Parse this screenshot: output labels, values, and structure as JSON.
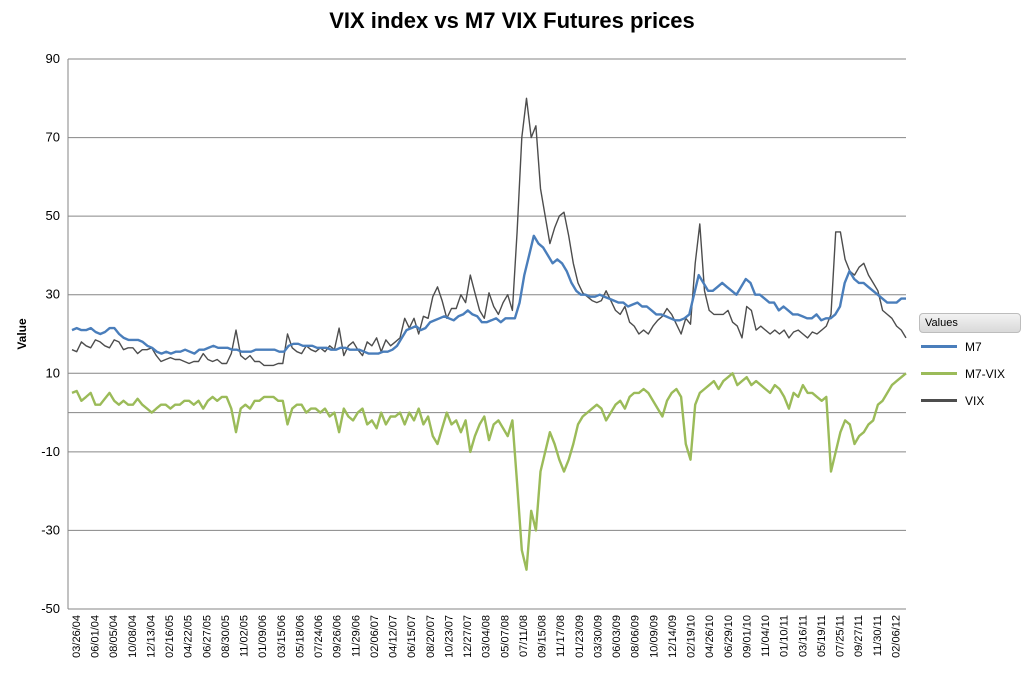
{
  "chart_data": {
    "type": "line",
    "title": "VIX index vs M7 VIX Futures prices",
    "xlabel": "",
    "ylabel": "Value",
    "ylim": [
      -50,
      90
    ],
    "yticks": [
      -50,
      -30,
      -10,
      10,
      30,
      50,
      70,
      90
    ],
    "x_tick_labels": [
      "03/26/04",
      "06/01/04",
      "08/05/04",
      "10/08/04",
      "12/13/04",
      "02/16/05",
      "04/22/05",
      "06/27/05",
      "08/30/05",
      "11/02/05",
      "01/09/06",
      "03/15/06",
      "05/18/06",
      "07/24/06",
      "09/26/06",
      "11/29/06",
      "02/06/07",
      "04/12/07",
      "06/15/07",
      "08/20/07",
      "10/23/07",
      "12/27/07",
      "03/04/08",
      "05/07/08",
      "07/11/08",
      "09/15/08",
      "11/17/08",
      "01/23/09",
      "03/30/09",
      "06/03/09",
      "08/06/09",
      "10/09/09",
      "12/14/09",
      "02/19/10",
      "04/26/10",
      "06/29/10",
      "09/01/10",
      "11/04/10",
      "01/10/11",
      "03/16/11",
      "05/19/11",
      "07/25/11",
      "09/27/11",
      "11/30/11",
      "02/06/12"
    ],
    "grid": true,
    "legend": {
      "title": "Values",
      "position": "right"
    },
    "series": [
      {
        "name": "M7",
        "color": "#4a7ebb",
        "values": [
          21,
          21.5,
          21,
          21,
          21.5,
          20.5,
          20,
          20.5,
          21.5,
          21.5,
          20,
          19,
          18.5,
          18.5,
          18.5,
          18,
          17,
          16.5,
          15.5,
          15,
          15.5,
          15,
          15.5,
          15.5,
          16,
          15.5,
          15,
          16,
          16,
          16.5,
          17,
          16.5,
          16.5,
          16.5,
          16,
          16,
          15.5,
          15.5,
          15.5,
          16,
          16,
          16,
          16,
          16,
          15.5,
          15.5,
          17,
          17.5,
          17.5,
          17,
          17,
          17,
          16.5,
          16.5,
          16.5,
          16,
          16,
          16.5,
          16.5,
          16,
          16,
          16,
          15.5,
          15,
          15,
          15,
          15.5,
          15.5,
          16,
          17,
          19,
          21,
          21.5,
          22,
          21,
          21.5,
          23,
          23.5,
          24,
          24.5,
          24,
          23.5,
          24.5,
          25,
          26,
          25,
          24.5,
          23,
          23,
          23.5,
          24,
          23,
          24,
          24,
          24,
          28,
          35,
          40,
          45,
          43,
          42,
          40,
          38,
          39,
          38,
          36,
          33,
          31,
          30,
          30,
          29.5,
          29.5,
          30,
          29.5,
          29,
          28.5,
          28,
          28,
          27,
          27.5,
          28,
          27,
          27,
          26,
          25,
          25,
          24.5,
          24,
          23.5,
          23.5,
          24,
          25,
          30,
          35,
          33,
          31,
          31,
          32,
          33,
          32,
          31,
          30,
          32,
          34,
          33,
          30,
          30,
          29,
          28,
          28,
          26,
          27,
          26,
          25,
          25,
          24.5,
          24,
          24,
          25,
          23.5,
          24,
          24,
          25,
          27,
          33,
          36,
          34,
          33,
          33,
          32,
          31,
          30,
          29,
          28,
          28,
          28,
          29,
          29
        ]
      },
      {
        "name": "M7-VIX",
        "color": "#9bbb59",
        "values": [
          5,
          5.5,
          3,
          4,
          5,
          2,
          2,
          3.5,
          5,
          3,
          2,
          3,
          2,
          2,
          3.5,
          2,
          1,
          0,
          1,
          2,
          2,
          1,
          2,
          2,
          3,
          3,
          2,
          3,
          1,
          3,
          4,
          3,
          4,
          4,
          1,
          -5,
          1,
          2,
          1,
          3,
          3,
          4,
          4,
          4,
          3,
          3,
          -3,
          1,
          2,
          2,
          0,
          1,
          1,
          0,
          1,
          -1,
          0,
          -5,
          1,
          -1,
          -2,
          0,
          1,
          -3,
          -2,
          -4,
          0,
          -3,
          -1,
          -1,
          0,
          -3,
          0,
          -2,
          1,
          -3,
          -1,
          -6,
          -8,
          -4,
          0,
          -3,
          -2,
          -5,
          -2,
          -10,
          -6,
          -3,
          -1,
          -7,
          -3,
          -2,
          -4,
          -6,
          -2,
          -18,
          -35,
          -40,
          -25,
          -30,
          -15,
          -10,
          -5,
          -8,
          -12,
          -15,
          -12,
          -8,
          -3,
          -1,
          0,
          1,
          2,
          1,
          -2,
          0,
          2,
          3,
          1,
          4,
          5,
          5,
          6,
          5,
          3,
          1,
          -1,
          3,
          5,
          6,
          4,
          -8,
          -12,
          2,
          5,
          6,
          7,
          8,
          6,
          8,
          9,
          10,
          7,
          8,
          9,
          7,
          8,
          7,
          6,
          5,
          7,
          6,
          4,
          1,
          5,
          4,
          7,
          5,
          5,
          4,
          3,
          4,
          -15,
          -10,
          -5,
          -2,
          -3,
          -8,
          -6,
          -5,
          -3,
          -2,
          2,
          3,
          5,
          7,
          8,
          9,
          10
        ]
      },
      {
        "name": "VIX",
        "color": "#4d4d4d",
        "values": [
          16,
          15.5,
          18,
          17,
          16.5,
          18.5,
          18,
          17,
          16.5,
          18.5,
          18,
          16,
          16.5,
          16.5,
          15,
          16,
          16,
          16.5,
          14.5,
          13,
          13.5,
          14,
          13.5,
          13.5,
          13,
          12.5,
          13,
          13,
          15,
          13.5,
          13,
          13.5,
          12.5,
          12.5,
          15,
          21,
          14.5,
          13.5,
          14.5,
          13,
          13,
          12,
          12,
          12,
          12.5,
          12.5,
          20,
          16.5,
          15.5,
          15,
          17,
          16,
          15.5,
          16.5,
          15.5,
          17,
          16,
          21.5,
          14.5,
          17,
          18,
          16,
          14.5,
          18,
          17,
          19,
          15.5,
          18.5,
          17,
          18,
          19,
          24,
          21.5,
          24,
          20,
          24.5,
          24,
          29.5,
          32,
          28.5,
          24,
          26.5,
          26.5,
          30,
          28,
          35,
          30.5,
          26,
          24,
          30.5,
          27,
          25,
          28,
          30,
          26,
          46,
          70,
          80,
          70,
          73,
          57,
          50,
          43,
          47,
          50,
          51,
          45,
          38,
          33,
          30.5,
          29.5,
          28.5,
          28,
          28.5,
          31,
          28.5,
          26,
          25,
          27,
          23,
          22,
          20,
          21,
          20,
          22,
          23.5,
          24.5,
          26.5,
          25,
          22.5,
          20,
          24,
          22.5,
          38,
          48,
          31,
          26,
          25,
          25,
          25,
          26,
          23,
          22,
          19,
          27,
          26,
          21,
          22,
          21,
          20,
          21,
          20,
          21,
          19,
          20.5,
          21,
          20,
          19,
          20.5,
          20,
          21,
          22,
          25,
          46,
          46,
          39,
          36,
          35,
          37,
          38,
          35,
          33,
          31,
          26,
          25,
          24,
          22,
          21,
          19
        ]
      }
    ]
  }
}
